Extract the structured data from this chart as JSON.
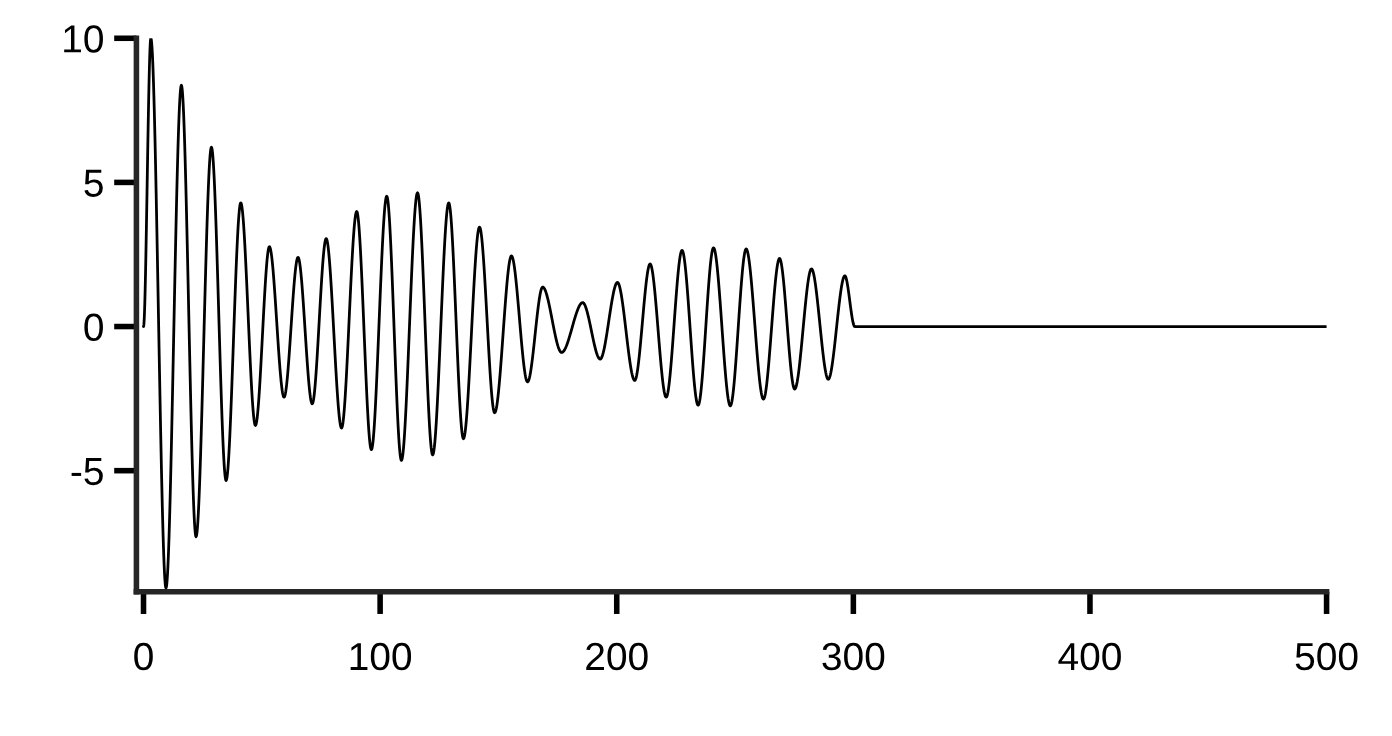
{
  "chart_data": {
    "type": "line",
    "xlim": [
      -3,
      500
    ],
    "ylim": [
      -9.2,
      10
    ],
    "xticks": [
      0,
      100,
      200,
      300,
      400,
      500
    ],
    "yticks": [
      -5,
      0,
      5,
      10
    ],
    "grid": false,
    "series": [
      {
        "color": "#000000",
        "x": [
          0,
          3.1,
          9.5,
          16.0,
          22.2,
          28.7,
          34.9,
          41.1,
          47.3,
          53.2,
          59.4,
          65.3,
          71.3,
          77.2,
          83.7,
          90.1,
          96.3,
          102.8,
          109.0,
          115.8,
          122.2,
          129.0,
          135.2,
          142.0,
          148.4,
          155.5,
          162.3,
          168.7,
          176.7,
          185.6,
          193.0,
          200.3,
          207.6,
          214.1,
          220.9,
          227.6,
          234.4,
          240.9,
          248.0,
          254.7,
          262.0,
          268.8,
          275.2,
          282.3,
          289.4,
          296.4,
          300.6,
          500
        ],
        "values": [
          0,
          10,
          -9.07,
          8.37,
          -7.29,
          6.22,
          -5.34,
          4.29,
          -3.43,
          2.77,
          -2.45,
          2.4,
          -2.68,
          3.05,
          -3.52,
          3.99,
          -4.27,
          4.52,
          -4.64,
          4.64,
          -4.45,
          4.29,
          -3.89,
          3.45,
          -2.99,
          2.45,
          -1.92,
          1.37,
          -0.9,
          0.83,
          -1.13,
          1.53,
          -1.87,
          2.17,
          -2.45,
          2.64,
          -2.73,
          2.73,
          -2.75,
          2.69,
          -2.52,
          2.36,
          -2.17,
          2.0,
          -1.83,
          1.76,
          0,
          0
        ]
      }
    ]
  }
}
